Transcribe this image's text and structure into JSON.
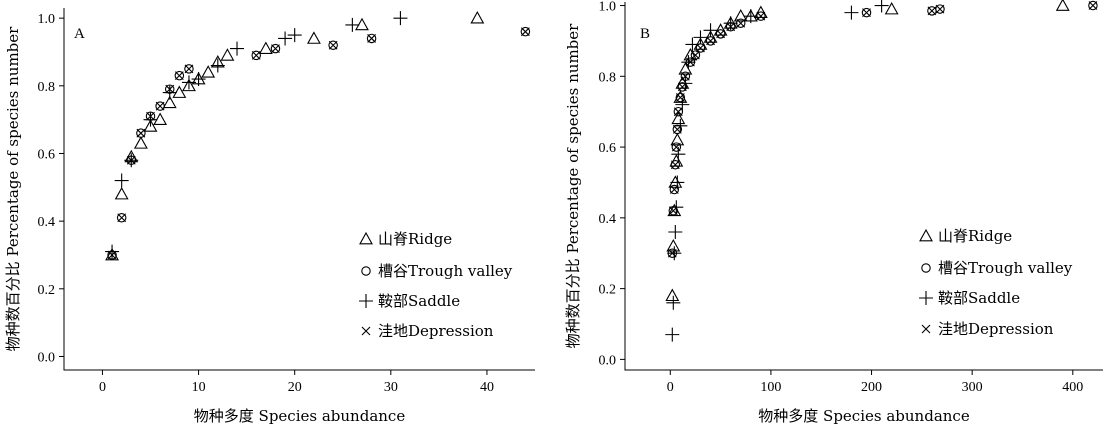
{
  "chart_data": [
    {
      "type": "scatter",
      "panel_label": "A",
      "xlabel": "物种多度 Species abundance",
      "ylabel": "物种数百分比 Percentage of species number",
      "xlim": [
        -4,
        45
      ],
      "ylim": [
        -0.04,
        1.03
      ],
      "xticks": [
        0,
        10,
        20,
        30,
        40
      ],
      "yticks": [
        0.0,
        0.2,
        0.4,
        0.6,
        0.8,
        1.0
      ],
      "legend_position": "bottom-right",
      "series": [
        {
          "name": "山脊Ridge",
          "marker": "triangle",
          "x": [
            1,
            2,
            3,
            4,
            5,
            6,
            7,
            8,
            9,
            10,
            11,
            12,
            13,
            17,
            22,
            27,
            39
          ],
          "y": [
            0.3,
            0.48,
            0.59,
            0.63,
            0.68,
            0.7,
            0.75,
            0.78,
            0.8,
            0.82,
            0.84,
            0.87,
            0.89,
            0.91,
            0.94,
            0.98,
            1.0
          ]
        },
        {
          "name": "槽谷Trough valley",
          "marker": "circle",
          "x": [
            1,
            2,
            3,
            4,
            5,
            6,
            7,
            8,
            9,
            16,
            18,
            24,
            28,
            44
          ],
          "y": [
            0.3,
            0.41,
            0.58,
            0.66,
            0.71,
            0.74,
            0.79,
            0.83,
            0.85,
            0.89,
            0.91,
            0.92,
            0.94,
            0.96
          ]
        },
        {
          "name": "鞍部Saddle",
          "marker": "plus",
          "x": [
            1,
            2,
            3,
            5,
            7,
            9,
            10,
            12,
            14,
            19,
            20,
            26,
            31
          ],
          "y": [
            0.31,
            0.52,
            0.58,
            0.7,
            0.78,
            0.81,
            0.82,
            0.86,
            0.91,
            0.94,
            0.95,
            0.98,
            1.0
          ]
        },
        {
          "name": "洼地Depression",
          "marker": "x",
          "x": [
            1,
            2,
            3,
            4,
            5,
            6,
            7,
            8,
            9,
            16,
            18,
            24,
            28,
            44
          ],
          "y": [
            0.3,
            0.41,
            0.58,
            0.66,
            0.71,
            0.74,
            0.79,
            0.83,
            0.85,
            0.89,
            0.91,
            0.92,
            0.94,
            0.96
          ]
        }
      ]
    },
    {
      "type": "scatter",
      "panel_label": "B",
      "xlabel": "物种多度 Species abundance",
      "ylabel": "物种数百分比 Percentage of species number",
      "xlim": [
        -45,
        430
      ],
      "ylim": [
        -0.03,
        1.01
      ],
      "xticks": [
        0,
        100,
        200,
        300,
        400
      ],
      "yticks": [
        0.0,
        0.2,
        0.4,
        0.6,
        0.8,
        1.0
      ],
      "legend_position": "bottom-right",
      "series": [
        {
          "name": "山脊Ridge",
          "marker": "triangle",
          "x": [
            2,
            3,
            4,
            5,
            6,
            7,
            8,
            10,
            12,
            15,
            20,
            30,
            40,
            50,
            60,
            70,
            80,
            90,
            220,
            390
          ],
          "y": [
            0.18,
            0.32,
            0.42,
            0.5,
            0.56,
            0.62,
            0.68,
            0.74,
            0.78,
            0.82,
            0.86,
            0.89,
            0.91,
            0.93,
            0.95,
            0.97,
            0.97,
            0.98,
            0.99,
            1.0
          ]
        },
        {
          "name": "槽谷Trough valley",
          "marker": "circle",
          "x": [
            2,
            3,
            4,
            5,
            6,
            7,
            8,
            10,
            12,
            15,
            20,
            25,
            30,
            40,
            50,
            60,
            70,
            90,
            195,
            260,
            268,
            420
          ],
          "y": [
            0.3,
            0.42,
            0.48,
            0.55,
            0.6,
            0.65,
            0.7,
            0.74,
            0.77,
            0.8,
            0.84,
            0.86,
            0.88,
            0.9,
            0.92,
            0.94,
            0.95,
            0.97,
            0.98,
            0.985,
            0.99,
            1.0
          ]
        },
        {
          "name": "鞍部Saddle",
          "marker": "plus",
          "x": [
            2,
            3,
            4,
            5,
            6,
            7,
            8,
            10,
            12,
            15,
            18,
            22,
            30,
            40,
            60,
            80,
            180,
            210
          ],
          "y": [
            0.07,
            0.16,
            0.3,
            0.36,
            0.43,
            0.5,
            0.58,
            0.66,
            0.72,
            0.78,
            0.84,
            0.89,
            0.91,
            0.93,
            0.95,
            0.97,
            0.98,
            1.0
          ]
        },
        {
          "name": "洼地Depression",
          "marker": "x",
          "x": [
            2,
            3,
            4,
            5,
            6,
            7,
            8,
            10,
            12,
            15,
            20,
            25,
            30,
            40,
            50,
            60,
            70,
            90,
            195,
            260,
            268,
            420
          ],
          "y": [
            0.3,
            0.42,
            0.48,
            0.55,
            0.6,
            0.65,
            0.7,
            0.74,
            0.77,
            0.8,
            0.84,
            0.86,
            0.88,
            0.9,
            0.92,
            0.94,
            0.95,
            0.97,
            0.98,
            0.985,
            0.99,
            1.0
          ]
        }
      ]
    }
  ]
}
